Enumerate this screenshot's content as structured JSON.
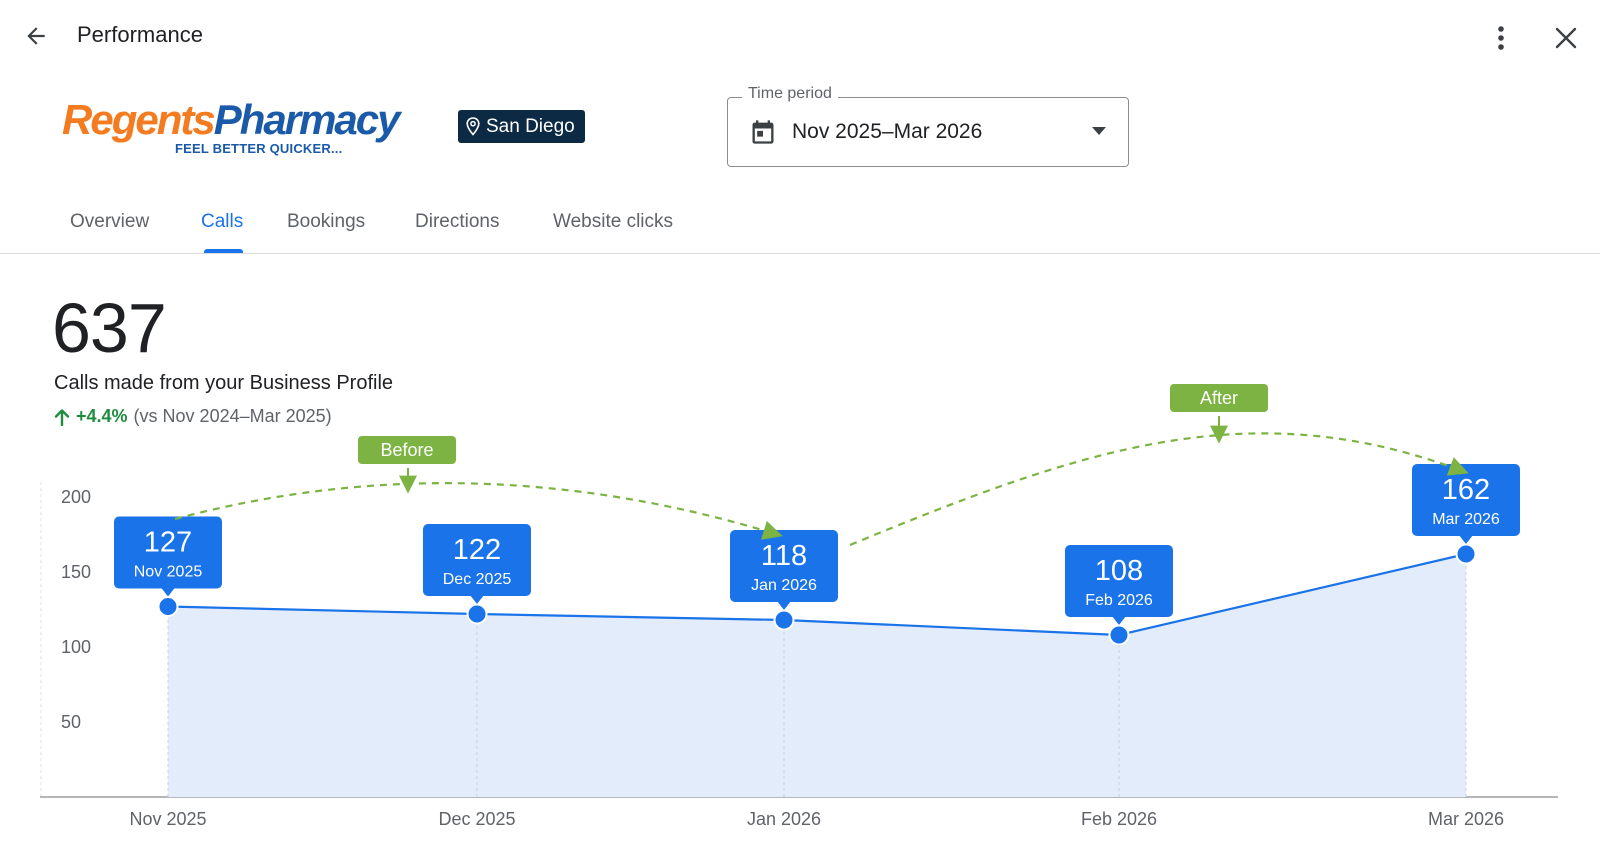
{
  "header": {
    "title": "Performance",
    "icons": {
      "back": "arrow-back-icon",
      "more": "more-vert-icon",
      "close": "close-icon"
    }
  },
  "business": {
    "logo_text_primary": "Regents",
    "logo_text_secondary": "Pharmacy",
    "logo_tagline": "FEEL BETTER QUICKER...",
    "location": "San Diego",
    "colors": {
      "logo_orange": "#f47b20",
      "logo_blue": "#1a5aa8",
      "badge_bg": "#0d2a45"
    }
  },
  "time_period": {
    "label": "Time period",
    "value": "Nov 2025–Mar 2026"
  },
  "tabs": [
    {
      "label": "Overview",
      "active": false
    },
    {
      "label": "Calls",
      "active": true
    },
    {
      "label": "Bookings",
      "active": false
    },
    {
      "label": "Directions",
      "active": false
    },
    {
      "label": "Website clicks",
      "active": false
    }
  ],
  "metric": {
    "value": "637",
    "description": "Calls made from your Business Profile",
    "change": "+4.4%",
    "comparison": "(vs Nov 2024–Mar 2025)",
    "colors": {
      "positive": "#1e8e3e",
      "accent": "#1a73e8"
    }
  },
  "annotations": {
    "before": "Before",
    "after": "After",
    "color": "#7cb342"
  },
  "chart_data": {
    "type": "area",
    "categories": [
      "Nov 2025",
      "Dec 2025",
      "Jan 2026",
      "Feb 2026",
      "Mar 2026"
    ],
    "values": [
      127,
      122,
      118,
      108,
      162
    ],
    "data_labels": [
      {
        "value": "127",
        "date": "Nov 2025"
      },
      {
        "value": "122",
        "date": "Dec 2025"
      },
      {
        "value": "118",
        "date": "Jan 2026"
      },
      {
        "value": "108",
        "date": "Feb 2026"
      },
      {
        "value": "162",
        "date": "Mar 2026"
      }
    ],
    "y_ticks": [
      200,
      150,
      100,
      50
    ],
    "ylim": [
      0,
      200
    ],
    "grid": false,
    "colors": {
      "line": "#1a73e8",
      "fill": "#e3ecfb",
      "callout": "#1a73e8"
    }
  }
}
